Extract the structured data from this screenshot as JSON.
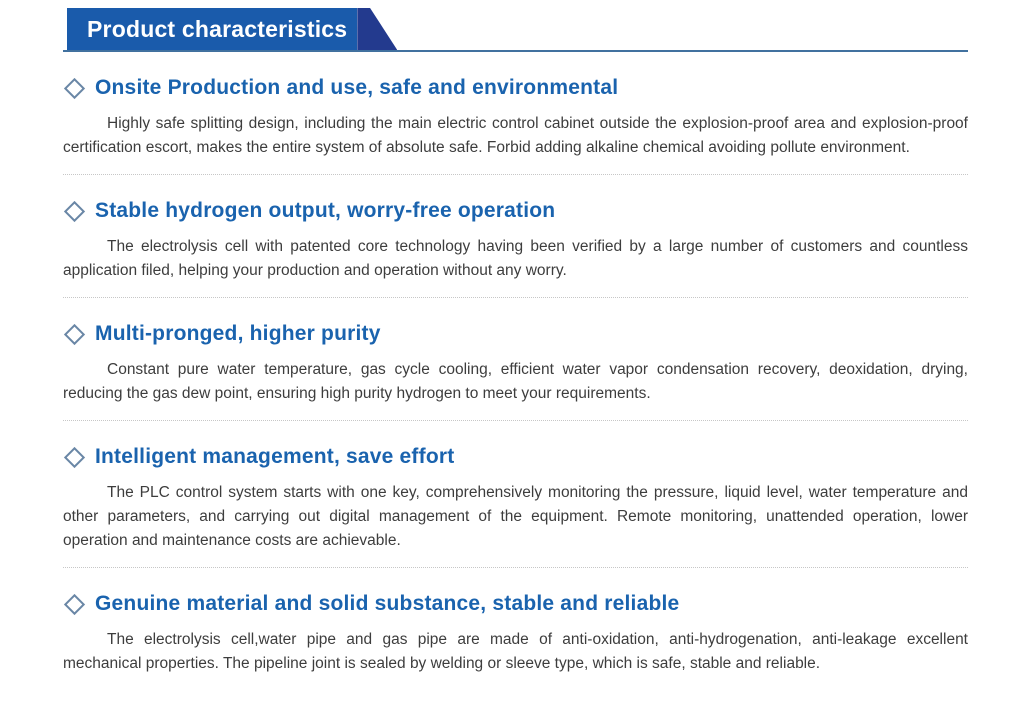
{
  "header": {
    "title": "Product characteristics"
  },
  "colors": {
    "banner_blue": "#1a5bab",
    "banner_slant_navy": "#233a8e",
    "header_rule_blue": "#41719f",
    "heading_blue": "#1a63ae",
    "diamond_outline": "#6a87a6",
    "body_text": "#3d3d3d",
    "divider_gray": "#c7c7c7"
  },
  "icons": {
    "bullet": "diamond-outline"
  },
  "sections": [
    {
      "heading": "Onsite Production and use, safe and environmental",
      "body": "Highly safe splitting design, including the main electric control cabinet outside the explosion-proof area and explosion-proof certification escort, makes the entire system of absolute safe. Forbid adding alkaline chemical  avoiding pollute environment."
    },
    {
      "heading": "Stable hydrogen output, worry-free operation",
      "body": "The electrolysis cell with patented core technology having been verified by a large number of customers and countless application filed, helping your production and operation without any worry."
    },
    {
      "heading": "Multi-pronged, higher purity",
      "body": "Constant pure water temperature, gas cycle cooling, efficient water vapor condensation recovery, deoxidation, drying, reducing the gas dew point, ensuring high purity hydrogen to meet your requirements."
    },
    {
      "heading": "Intelligent management, save effort",
      "body": "The PLC control system starts with one key, comprehensively monitoring the pressure, liquid level, water temperature and other parameters, and carrying out digital management of the equipment. Remote monitoring, unattended operation, lower operation and maintenance costs are achievable."
    },
    {
      "heading": "Genuine material and solid substance, stable and reliable",
      "body": "The electrolysis cell,water pipe and gas pipe are made of anti-oxidation, anti-hydrogenation, anti-leakage excellent mechanical properties. The pipeline joint is sealed by welding or sleeve type, which is safe, stable and reliable."
    }
  ]
}
